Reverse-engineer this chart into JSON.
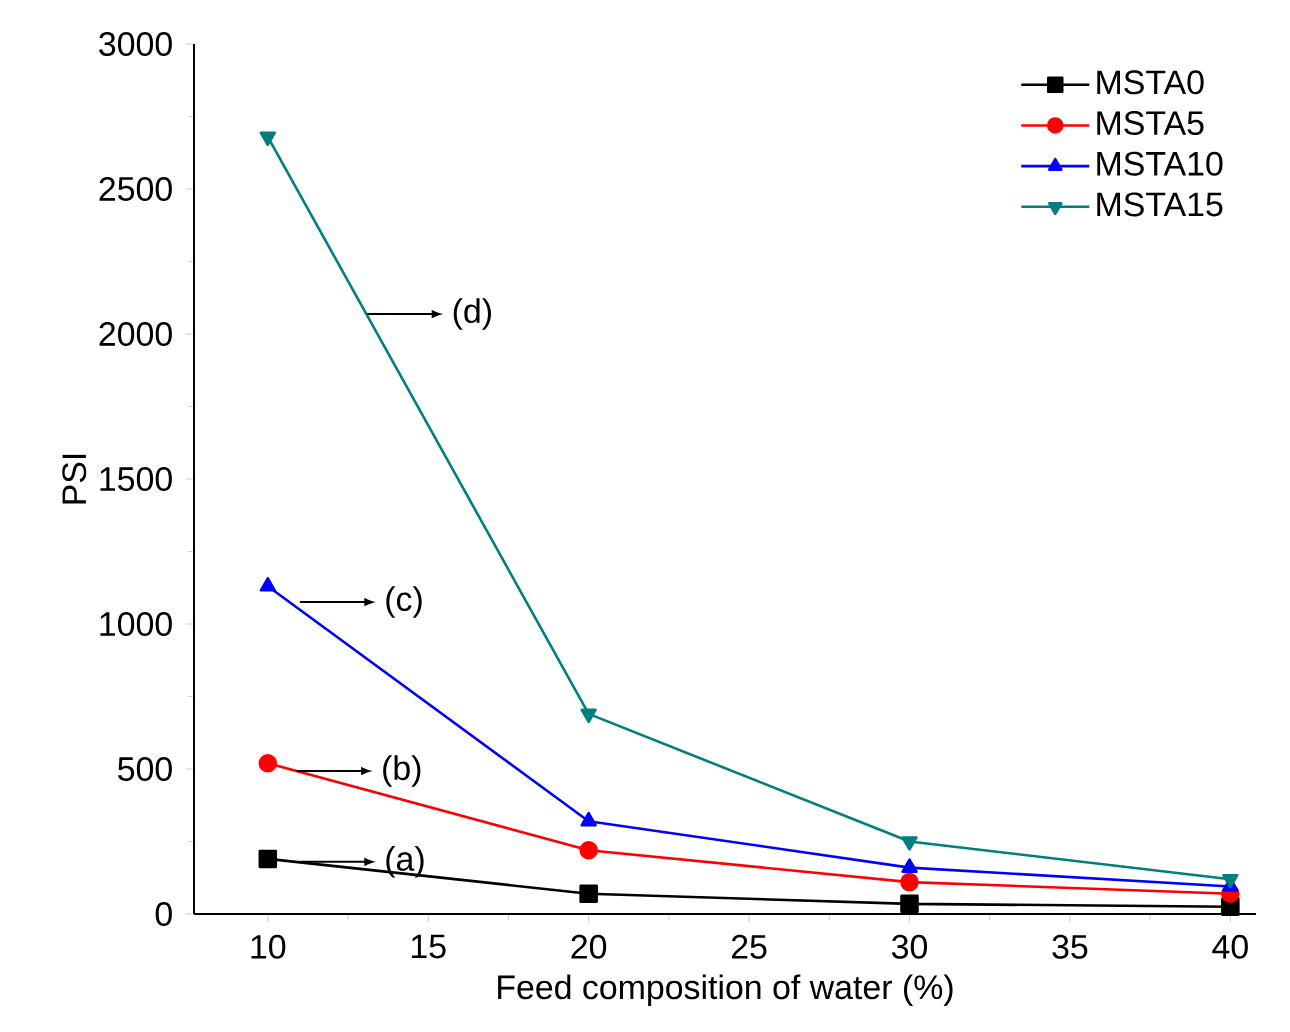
{
  "chart_data": {
    "type": "line",
    "xlabel": "Feed composition of water (%)",
    "ylabel": "PSI",
    "x": [
      10,
      20,
      30,
      40
    ],
    "series": [
      {
        "name": "MSTA0",
        "color": "#000000",
        "marker": "square",
        "values": [
          190,
          70,
          35,
          25
        ]
      },
      {
        "name": "MSTA5",
        "color": "#ff0000",
        "marker": "circle",
        "values": [
          520,
          220,
          110,
          70
        ]
      },
      {
        "name": "MSTA10",
        "color": "#0000ff",
        "marker": "triangle",
        "values": [
          1130,
          320,
          160,
          95
        ]
      },
      {
        "name": "MSTA15",
        "color": "#007f7f",
        "marker": "triangle-down",
        "values": [
          2680,
          690,
          250,
          120
        ]
      }
    ],
    "annotations": [
      {
        "text": "(a)",
        "x": 11.0,
        "y": 180
      },
      {
        "text": "(b)",
        "x": 10.9,
        "y": 493
      },
      {
        "text": "(c)",
        "x": 11.0,
        "y": 1076
      },
      {
        "text": "(d)",
        "x": 13.1,
        "y": 2069
      }
    ],
    "xlim": [
      7.7,
      40.8
    ],
    "ylim": [
      0,
      3000
    ],
    "xticks": [
      10,
      15,
      20,
      25,
      30,
      35,
      40
    ],
    "yticks": [
      0,
      500,
      1000,
      1500,
      2000,
      2500,
      3000
    ],
    "legend": "top right",
    "grid": false,
    "line_style": "solid"
  }
}
